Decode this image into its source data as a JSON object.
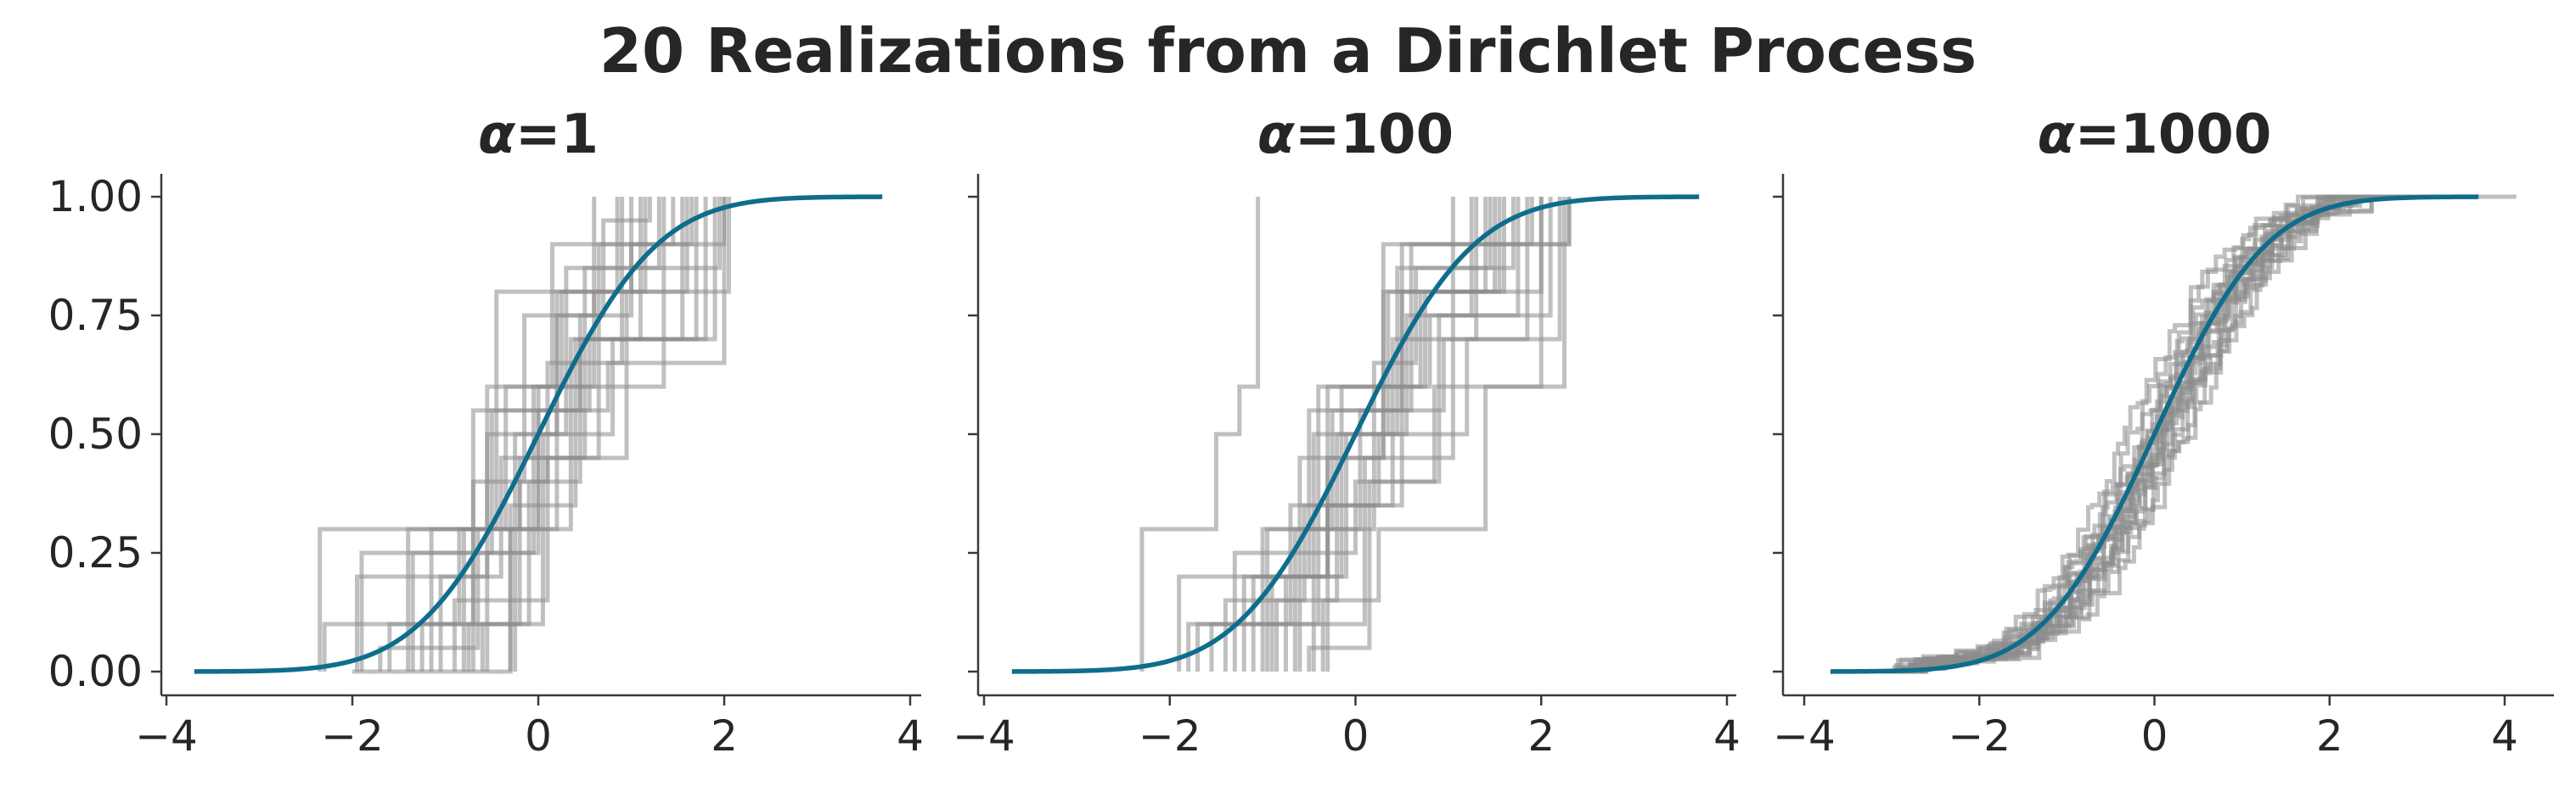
{
  "title": "20 Realizations from a Dirichlet Process",
  "colors": {
    "cdf": "#0f6d8c",
    "samples": "#8c8c8c",
    "axis": "#3a3a3a",
    "text": "#262626"
  },
  "chart_data": [
    {
      "type": "line",
      "title_symbol": "α",
      "title_value": "=1",
      "xlim": [
        -4,
        4
      ],
      "ylim": [
        0,
        1
      ],
      "xticks": [
        -4,
        -2,
        0,
        2,
        4
      ],
      "xtick_labels": [
        "−4",
        "−2",
        "0",
        "2",
        "4"
      ],
      "yticks": [
        0,
        0.25,
        0.5,
        0.75,
        1.0
      ],
      "ytick_labels": [
        "0.00",
        "0.25",
        "0.50",
        "0.75",
        "1.00"
      ],
      "cdf_x_range": [
        -3.7,
        3.7
      ],
      "samples": [
        {
          "x": [
            -2.35,
            -0.45,
            1.0,
            2.0
          ],
          "y": [
            0.3,
            0.8,
            0.9,
            1.0
          ]
        },
        {
          "x": [
            -1.95,
            -0.55,
            0.6,
            2.05
          ],
          "y": [
            0.2,
            0.6,
            0.8,
            1.0
          ]
        },
        {
          "x": [
            -2.3,
            -0.7,
            0.45,
            1.7
          ],
          "y": [
            0.1,
            0.55,
            0.7,
            1.0
          ]
        },
        {
          "x": [
            -1.6,
            -0.1,
            0.45,
            1.0
          ],
          "y": [
            0.1,
            0.4,
            0.75,
            1.0
          ]
        },
        {
          "x": [
            -0.8,
            -0.35,
            0.15,
            1.65
          ],
          "y": [
            0.3,
            0.6,
            0.9,
            1.0
          ]
        },
        {
          "x": [
            -1.4,
            -0.55,
            0.8,
            1.9
          ],
          "y": [
            0.3,
            0.5,
            0.7,
            1.0
          ]
        },
        {
          "x": [
            -1.25,
            -0.85,
            0.0,
            1.35
          ],
          "y": [
            0.1,
            0.3,
            0.6,
            1.0
          ]
        },
        {
          "x": [
            -0.6,
            0.05,
            0.3,
            1.95
          ],
          "y": [
            0.1,
            0.5,
            0.85,
            1.0
          ]
        },
        {
          "x": [
            -1.15,
            -0.2,
            0.95,
            1.6
          ],
          "y": [
            0.3,
            0.45,
            0.8,
            1.0
          ]
        },
        {
          "x": [
            -0.7,
            -0.15,
            0.7,
            1.2
          ],
          "y": [
            0.4,
            0.75,
            0.95,
            1.0
          ]
        },
        {
          "x": [
            -2.0,
            -0.3,
            0.4,
            1.55
          ],
          "y": [
            0.0,
            0.35,
            0.7,
            1.0
          ]
        },
        {
          "x": [
            -1.9,
            -0.5,
            0.55,
            1.8
          ],
          "y": [
            0.25,
            0.55,
            0.7,
            1.0
          ]
        },
        {
          "x": [
            -1.35,
            -0.05,
            0.25,
            1.15
          ],
          "y": [
            0.25,
            0.6,
            0.8,
            1.0
          ]
        },
        {
          "x": [
            -0.9,
            0.1,
            0.65,
            1.45
          ],
          "y": [
            0.15,
            0.45,
            0.9,
            1.0
          ]
        },
        {
          "x": [
            -0.3,
            0.35,
            1.1
          ],
          "y": [
            0.3,
            0.7,
            1.0
          ]
        },
        {
          "x": [
            -1.7,
            -0.65,
            0.2,
            0.85
          ],
          "y": [
            0.05,
            0.3,
            0.8,
            1.0
          ]
        },
        {
          "x": [
            -0.55,
            0.0,
            0.75,
            2.0
          ],
          "y": [
            0.25,
            0.55,
            0.65,
            1.0
          ]
        },
        {
          "x": [
            -1.05,
            -0.4,
            0.5,
            1.3
          ],
          "y": [
            0.2,
            0.45,
            0.85,
            1.0
          ]
        },
        {
          "x": [
            -0.25,
            0.2,
            0.6
          ],
          "y": [
            0.5,
            0.75,
            1.0
          ]
        },
        {
          "x": [
            -0.75,
            -0.2,
            0.1,
            0.9
          ],
          "y": [
            0.1,
            0.4,
            0.65,
            1.0
          ]
        }
      ]
    },
    {
      "type": "line",
      "title_symbol": "α",
      "title_value": "=100",
      "xlim": [
        -4,
        4
      ],
      "ylim": [
        0,
        1
      ],
      "xticks": [
        -4,
        -2,
        0,
        2,
        4
      ],
      "xtick_labels": [
        "−4",
        "−2",
        "0",
        "2",
        "4"
      ],
      "yticks": [
        0,
        0.25,
        0.5,
        0.75,
        1.0
      ],
      "ytick_labels": [
        "0.00",
        "0.25",
        "0.50",
        "0.75",
        "1.00"
      ],
      "cdf_x_range": [
        -3.7,
        3.7
      ],
      "samples": [
        {
          "x": [
            -2.3,
            -1.5,
            -1.25,
            -1.05
          ],
          "y": [
            0.3,
            0.5,
            0.6,
            1.0
          ]
        },
        {
          "x": [
            -1.9,
            -0.5,
            0.5,
            2.3
          ],
          "y": [
            0.2,
            0.55,
            0.9,
            1.0
          ]
        },
        {
          "x": [
            -1.8,
            -0.6,
            0.3,
            2.0
          ],
          "y": [
            0.1,
            0.45,
            0.8,
            1.0
          ]
        },
        {
          "x": [
            -1.3,
            -0.45,
            0.35,
            1.6
          ],
          "y": [
            0.25,
            0.5,
            0.8,
            1.0
          ]
        },
        {
          "x": [
            -0.6,
            0.1,
            1.05,
            2.3
          ],
          "y": [
            0.1,
            0.45,
            0.9,
            1.0
          ]
        },
        {
          "x": [
            -1.0,
            -0.25,
            0.6,
            1.9
          ],
          "y": [
            0.3,
            0.55,
            0.9,
            1.0
          ]
        },
        {
          "x": [
            -0.35,
            0.25,
            1.4,
            2.25
          ],
          "y": [
            0.15,
            0.3,
            0.6,
            1.0
          ]
        },
        {
          "x": [
            -1.1,
            -0.3,
            0.7,
            1.5
          ],
          "y": [
            0.2,
            0.6,
            0.8,
            1.0
          ]
        },
        {
          "x": [
            -0.75,
            -0.1,
            0.55,
            1.25
          ],
          "y": [
            0.2,
            0.5,
            0.75,
            1.0
          ]
        },
        {
          "x": [
            -1.55,
            -0.7,
            0.4,
            1.3
          ],
          "y": [
            0.1,
            0.35,
            0.7,
            1.0
          ]
        },
        {
          "x": [
            -0.5,
            0.15,
            0.9,
            2.1
          ],
          "y": [
            0.05,
            0.4,
            0.75,
            1.0
          ]
        },
        {
          "x": [
            -0.85,
            -0.2,
            0.45,
            1.7
          ],
          "y": [
            0.15,
            0.5,
            0.85,
            1.0
          ]
        },
        {
          "x": [
            -1.7,
            -0.4,
            0.8,
            1.75
          ],
          "y": [
            0.1,
            0.6,
            0.75,
            1.0
          ]
        },
        {
          "x": [
            -0.95,
            0.05,
            0.95,
            2.2
          ],
          "y": [
            0.3,
            0.55,
            0.7,
            1.0
          ]
        },
        {
          "x": [
            -0.65,
            0.2,
            0.65,
            1.45
          ],
          "y": [
            0.3,
            0.65,
            0.85,
            1.0
          ]
        },
        {
          "x": [
            -1.2,
            -0.3,
            0.3,
            1.05
          ],
          "y": [
            0.2,
            0.45,
            0.9,
            1.0
          ]
        },
        {
          "x": [
            -0.3,
            0.25,
            1.2,
            1.85
          ],
          "y": [
            0.35,
            0.5,
            0.7,
            1.0
          ]
        },
        {
          "x": [
            -1.4,
            -0.55,
            0.5,
            1.55
          ],
          "y": [
            0.15,
            0.35,
            0.8,
            1.0
          ]
        },
        {
          "x": [
            -0.45,
            0.0,
            0.85,
            2.0
          ],
          "y": [
            0.25,
            0.4,
            0.6,
            1.0
          ]
        },
        {
          "x": [
            -0.9,
            -0.15,
            0.75,
            1.4
          ],
          "y": [
            0.2,
            0.6,
            0.8,
            1.0
          ]
        }
      ]
    },
    {
      "type": "line",
      "title_symbol": "α",
      "title_value": "=1000",
      "xlim": [
        -4,
        4.2
      ],
      "ylim": [
        0,
        1
      ],
      "xticks": [
        -4,
        -2,
        0,
        2,
        4
      ],
      "xtick_labels": [
        "−4",
        "−2",
        "0",
        "2",
        "4"
      ],
      "yticks": [
        0,
        0.25,
        0.5,
        0.75,
        1.0
      ],
      "ytick_labels": [
        "0.00",
        "0.25",
        "0.50",
        "0.75",
        "1.00"
      ],
      "cdf_x_range": [
        -3.7,
        3.7
      ],
      "sample_shifts": [
        -0.35,
        -0.25,
        -0.2,
        -0.15,
        -0.1,
        -0.08,
        -0.05,
        -0.02,
        0.0,
        0.02,
        0.05,
        0.08,
        0.1,
        0.12,
        0.15,
        0.18,
        0.2,
        0.25,
        0.3,
        0.35
      ],
      "sample_x_range": [
        -3.1,
        4.15
      ]
    }
  ]
}
